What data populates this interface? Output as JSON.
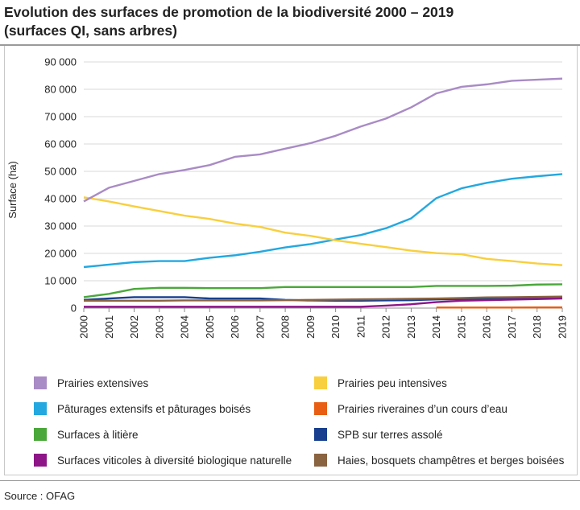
{
  "title_line1": "Evolution des surfaces de promotion de la biodiversité 2000 – 2019",
  "title_line2": "(surfaces QI, sans arbres)",
  "source": "Source : OFAG",
  "chart_data": {
    "type": "line",
    "ylabel": "Surface (ha)",
    "xlabel": "",
    "ylim": [
      0,
      90000
    ],
    "yticks": [
      0,
      10000,
      20000,
      30000,
      40000,
      50000,
      60000,
      70000,
      80000,
      90000
    ],
    "ytick_labels": [
      "0",
      "10 000",
      "20 000",
      "30 000",
      "40 000",
      "50 000",
      "60 000",
      "70 000",
      "80 000",
      "90 000"
    ],
    "grid": "horizontal",
    "x": [
      "2000",
      "2001",
      "2002",
      "2003",
      "2004",
      "2005",
      "2006",
      "2007",
      "2008",
      "2009",
      "2010",
      "2011",
      "2012",
      "2013",
      "2014",
      "2015",
      "2016",
      "2017",
      "2018",
      "2019"
    ],
    "series": [
      {
        "name": "Prairies extensives",
        "color": "#a98bc5",
        "values": [
          39000,
          44000,
          46500,
          49000,
          50500,
          52300,
          55300,
          56200,
          58300,
          60300,
          63000,
          66400,
          69300,
          73400,
          78500,
          80900,
          81800,
          83100,
          83500,
          83900
        ]
      },
      {
        "name": "Prairies peu intensives",
        "color": "#f8cf3e",
        "values": [
          40500,
          39000,
          37200,
          35500,
          33800,
          32600,
          30900,
          29700,
          27600,
          26400,
          24800,
          23500,
          22300,
          21000,
          20100,
          19700,
          18000,
          17200,
          16300,
          15700
        ]
      },
      {
        "name": "Pâturages extensifs et pâturages boisés",
        "color": "#23a8e0",
        "values": [
          15000,
          15900,
          16800,
          17200,
          17200,
          18400,
          19300,
          20600,
          22200,
          23400,
          25100,
          26700,
          29200,
          32800,
          40200,
          43800,
          45800,
          47300,
          48200,
          49000
        ]
      },
      {
        "name": "Prairies riveraines d’un cours d’eau",
        "color": "#e85e12",
        "values": [
          null,
          null,
          null,
          null,
          null,
          null,
          null,
          null,
          null,
          null,
          null,
          null,
          null,
          null,
          200,
          200,
          200,
          200,
          250,
          250
        ]
      },
      {
        "name": "Surfaces à litière",
        "color": "#4aa83a",
        "values": [
          4000,
          5200,
          7000,
          7400,
          7400,
          7300,
          7300,
          7300,
          7700,
          7700,
          7700,
          7700,
          7700,
          7700,
          8100,
          8100,
          8100,
          8200,
          8600,
          8700
        ]
      },
      {
        "name": "SPB sur terres assolé",
        "color": "#173f8e",
        "values": [
          3000,
          3500,
          4000,
          4000,
          4000,
          3500,
          3500,
          3500,
          3000,
          2800,
          2700,
          2700,
          2800,
          2900,
          3200,
          3300,
          3400,
          3500,
          3600,
          3700
        ]
      },
      {
        "name": "Surfaces viticoles à diversité biologique naturelle",
        "color": "#8e1587",
        "values": [
          500,
          500,
          500,
          500,
          500,
          500,
          500,
          500,
          500,
          500,
          500,
          500,
          900,
          1400,
          2200,
          2700,
          2900,
          3100,
          3300,
          3500
        ]
      },
      {
        "name": "Haies, bosquets champêtres et berges boisées",
        "color": "#8a6340",
        "values": [
          2700,
          2700,
          2700,
          2700,
          2800,
          2800,
          2800,
          2800,
          2900,
          3000,
          3100,
          3200,
          3300,
          3400,
          3500,
          3700,
          3900,
          4000,
          4100,
          4200
        ]
      }
    ]
  }
}
